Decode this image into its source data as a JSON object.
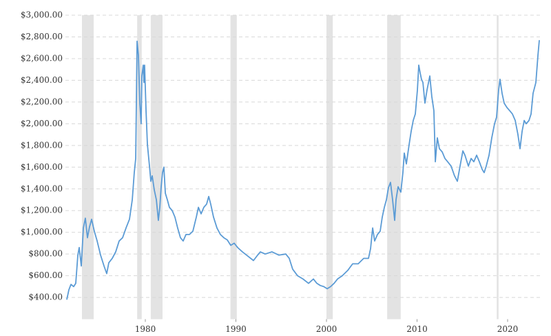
{
  "chart_data": {
    "type": "line",
    "xlim": [
      1971.18,
      2023.65
    ],
    "xticks": [
      1980,
      1990,
      2000,
      2010,
      2020
    ],
    "ylim": [
      200,
      3000
    ],
    "yticks": [
      {
        "value": 400,
        "label": "$400.00"
      },
      {
        "value": 600,
        "label": "$600.00"
      },
      {
        "value": 800,
        "label": "$800.00"
      },
      {
        "value": 1000,
        "label": "$1,000.00"
      },
      {
        "value": 1200,
        "label": "$1,200.00"
      },
      {
        "value": 1400,
        "label": "$1,400.00"
      },
      {
        "value": 1600,
        "label": "$1,600.00"
      },
      {
        "value": 1800,
        "label": "$1,800.00"
      },
      {
        "value": 2000,
        "label": "$2,000.00"
      },
      {
        "value": 2200,
        "label": "$2,200.00"
      },
      {
        "value": 2400,
        "label": "$2,400.00"
      },
      {
        "value": 2600,
        "label": "$2,600.00"
      },
      {
        "value": 2800,
        "label": "$2,800.00"
      },
      {
        "value": 3000,
        "label": "$3,000.00"
      }
    ],
    "grid": true,
    "shaded_color": "#e3e3e3",
    "shaded_ranges": [
      [
        1973.0,
        1974.3
      ],
      [
        1979.1,
        1979.6
      ],
      [
        1980.6,
        1981.9
      ],
      [
        1989.4,
        1990.1
      ],
      [
        2000.0,
        2000.7
      ],
      [
        2006.7,
        2008.2
      ],
      [
        2018.8,
        2019.0
      ]
    ],
    "x": [
      1971.33,
      1971.56,
      1971.79,
      1972.09,
      1972.32,
      1972.55,
      1972.7,
      1972.93,
      1973.16,
      1973.38,
      1973.61,
      1973.84,
      1974.07,
      1974.37,
      1974.68,
      1975.06,
      1975.44,
      1975.74,
      1975.97,
      1976.35,
      1976.73,
      1977.11,
      1977.49,
      1977.87,
      1978.25,
      1978.56,
      1978.78,
      1978.94,
      1979.09,
      1979.24,
      1979.39,
      1979.54,
      1979.62,
      1979.77,
      1979.85,
      1979.92,
      1980.08,
      1980.23,
      1980.46,
      1980.61,
      1980.76,
      1980.99,
      1981.22,
      1981.44,
      1981.6,
      1981.75,
      1981.9,
      1982.05,
      1982.21,
      1982.43,
      1982.66,
      1982.97,
      1983.27,
      1983.57,
      1983.88,
      1984.18,
      1984.49,
      1984.87,
      1985.25,
      1985.63,
      1985.86,
      1986.16,
      1986.46,
      1986.77,
      1987.0,
      1987.22,
      1987.53,
      1987.91,
      1988.29,
      1988.67,
      1989.05,
      1989.43,
      1989.81,
      1990.19,
      1990.72,
      1991.33,
      1991.94,
      1992.4,
      1992.7,
      1993.23,
      1993.99,
      1994.75,
      1995.51,
      1995.89,
      1996.27,
      1996.81,
      1997.41,
      1998.02,
      1998.56,
      1998.94,
      1999.32,
      1999.7,
      2000.08,
      2000.46,
      2000.84,
      2001.22,
      2001.75,
      2002.36,
      2002.89,
      2003.5,
      2004.11,
      2004.64,
      2004.87,
      2005.1,
      2005.32,
      2005.63,
      2005.93,
      2006.16,
      2006.39,
      2006.62,
      2006.84,
      2007.07,
      2007.3,
      2007.53,
      2007.68,
      2007.91,
      2008.21,
      2008.44,
      2008.59,
      2008.82,
      2009.13,
      2009.35,
      2009.58,
      2009.81,
      2010.04,
      2010.19,
      2010.34,
      2010.49,
      2010.65,
      2010.87,
      2011.1,
      2011.41,
      2011.63,
      2011.86,
      2012.02,
      2012.24,
      2012.47,
      2012.78,
      2013.08,
      2013.38,
      2013.76,
      2014.14,
      2014.45,
      2014.75,
      2015.06,
      2015.29,
      2015.67,
      2015.97,
      2016.27,
      2016.58,
      2016.88,
      2017.19,
      2017.41,
      2017.64,
      2017.95,
      2018.25,
      2018.56,
      2018.78,
      2019.01,
      2019.16,
      2019.39,
      2019.62,
      2019.92,
      2020.23,
      2020.53,
      2020.84,
      2021.14,
      2021.37,
      2021.6,
      2021.83,
      2022.05,
      2022.36,
      2022.59,
      2022.81,
      2023.12,
      2023.35,
      2023.5
    ],
    "series": [
      {
        "color": "#5b9bd5",
        "values": [
          380,
          470,
          520,
          500,
          530,
          790,
          860,
          690,
          1040,
          1130,
          950,
          1050,
          1120,
          1010,
          920,
          790,
          690,
          620,
          720,
          760,
          820,
          920,
          950,
          1040,
          1120,
          1300,
          1550,
          1680,
          2760,
          2630,
          2190,
          2000,
          2440,
          2540,
          2380,
          2540,
          2120,
          1810,
          1610,
          1470,
          1520,
          1390,
          1300,
          1110,
          1230,
          1420,
          1550,
          1600,
          1360,
          1300,
          1230,
          1200,
          1140,
          1040,
          950,
          920,
          980,
          980,
          1010,
          1140,
          1230,
          1170,
          1230,
          1260,
          1330,
          1260,
          1140,
          1040,
          980,
          950,
          930,
          880,
          900,
          860,
          820,
          780,
          740,
          790,
          820,
          800,
          820,
          790,
          800,
          760,
          660,
          600,
          570,
          530,
          570,
          530,
          510,
          500,
          480,
          500,
          530,
          570,
          600,
          650,
          710,
          710,
          760,
          760,
          850,
          1040,
          920,
          980,
          1010,
          1140,
          1230,
          1300,
          1410,
          1460,
          1300,
          1110,
          1300,
          1420,
          1370,
          1550,
          1730,
          1630,
          1810,
          1930,
          2030,
          2090,
          2310,
          2540,
          2470,
          2410,
          2380,
          2190,
          2310,
          2440,
          2250,
          2120,
          1650,
          1870,
          1770,
          1740,
          1680,
          1650,
          1610,
          1520,
          1470,
          1610,
          1750,
          1710,
          1610,
          1680,
          1650,
          1710,
          1650,
          1580,
          1550,
          1610,
          1710,
          1870,
          2000,
          2060,
          2310,
          2410,
          2280,
          2190,
          2150,
          2120,
          2090,
          2030,
          1900,
          1770,
          1930,
          2030,
          2000,
          2030,
          2090,
          2280,
          2380,
          2630,
          2770
        ]
      }
    ]
  }
}
